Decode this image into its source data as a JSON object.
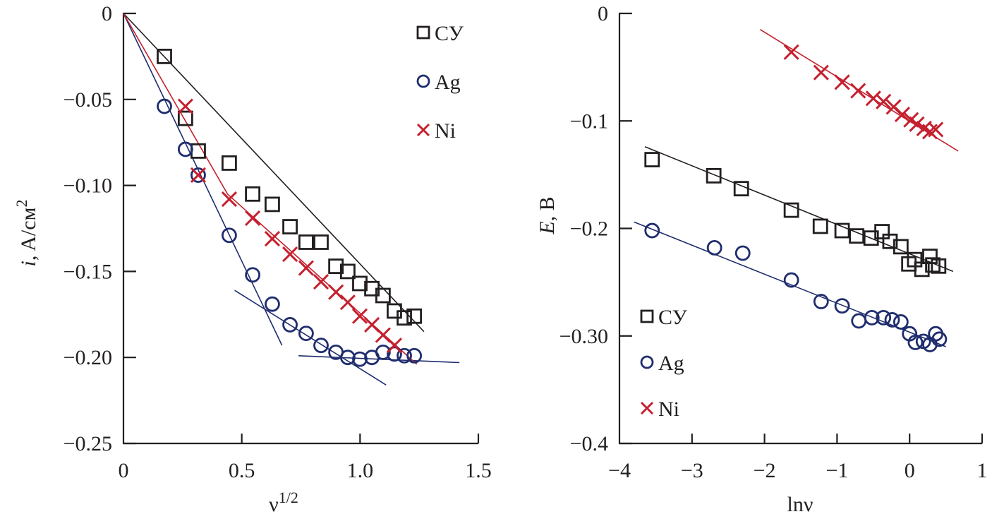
{
  "colors": {
    "СУ": "#231f20",
    "Ag": "#1f2d6e",
    "Ni": "#c5202e",
    "axis": "#231f20"
  },
  "chart_data": [
    {
      "type": "scatter",
      "title": "",
      "xlabel": "ν^1/2",
      "xlabel_base": "ν",
      "xlabel_sup": "1/2",
      "ylabel": "i, A/см²",
      "ylabel_italic": "i",
      "ylabel_rest": ", A/см",
      "ylabel_sup": "2",
      "xlim": [
        0,
        1.5
      ],
      "ylim": [
        -0.25,
        0
      ],
      "xticks": [
        0,
        0.5,
        1.0,
        1.5
      ],
      "xtick_labels": [
        "0",
        "0.5",
        "1.0",
        "1.5"
      ],
      "yticks": [
        0,
        -0.05,
        -0.1,
        -0.15,
        -0.2,
        -0.25
      ],
      "ytick_labels": [
        "0",
        "−0.05",
        "−0.10",
        "−0.15",
        "−0.20",
        "−0.25"
      ],
      "grid": false,
      "legend_position": "top-right",
      "legend": [
        {
          "name": "СУ",
          "marker": "square"
        },
        {
          "name": "Ag",
          "marker": "circle"
        },
        {
          "name": "Ni",
          "marker": "cross"
        }
      ],
      "series": [
        {
          "name": "СУ",
          "marker": "square",
          "x": [
            0.173,
            0.262,
            0.316,
            0.447,
            0.546,
            0.629,
            0.704,
            0.772,
            0.835,
            0.898,
            0.948,
            0.999,
            1.05,
            1.097,
            1.145,
            1.187,
            1.229
          ],
          "y": [
            -0.025,
            -0.061,
            -0.08,
            -0.087,
            -0.105,
            -0.111,
            -0.124,
            -0.133,
            -0.133,
            -0.147,
            -0.15,
            -0.157,
            -0.16,
            -0.164,
            -0.173,
            -0.177,
            -0.176
          ]
        },
        {
          "name": "Ag",
          "marker": "circle",
          "x": [
            0.173,
            0.262,
            0.316,
            0.447,
            0.546,
            0.629,
            0.704,
            0.772,
            0.835,
            0.898,
            0.948,
            0.999,
            1.05,
            1.097,
            1.145,
            1.187,
            1.229
          ],
          "y": [
            -0.054,
            -0.079,
            -0.094,
            -0.129,
            -0.152,
            -0.169,
            -0.181,
            -0.186,
            -0.193,
            -0.197,
            -0.2,
            -0.201,
            -0.2,
            -0.197,
            -0.198,
            -0.199,
            -0.199
          ]
        },
        {
          "name": "Ni",
          "marker": "cross",
          "x": [
            0.262,
            0.316,
            0.447,
            0.546,
            0.629,
            0.704,
            0.772,
            0.835,
            0.898,
            0.948,
            0.999,
            1.05,
            1.097,
            1.145
          ],
          "y": [
            -0.054,
            -0.094,
            -0.108,
            -0.119,
            -0.131,
            -0.14,
            -0.148,
            -0.156,
            -0.162,
            -0.168,
            -0.176,
            -0.181,
            -0.187,
            -0.193
          ]
        }
      ],
      "fit_lines": [
        {
          "series": "СУ",
          "points": [
            [
              0,
              0
            ],
            [
              1.27,
              -0.185
            ]
          ]
        },
        {
          "series": "Ag",
          "points": [
            [
              0,
              0
            ],
            [
              0.67,
              -0.193
            ]
          ]
        },
        {
          "series": "Ag",
          "points": [
            [
              0.47,
              -0.161
            ],
            [
              1.11,
              -0.216
            ]
          ]
        },
        {
          "series": "Ag",
          "points": [
            [
              0.74,
              -0.199
            ],
            [
              1.42,
              -0.203
            ]
          ]
        },
        {
          "series": "Ni",
          "points": [
            [
              0,
              0
            ],
            [
              0.44,
              -0.105
            ],
            [
              1.24,
              -0.204
            ]
          ]
        }
      ]
    },
    {
      "type": "scatter",
      "title": "",
      "xlabel": "lnν",
      "ylabel": "E, В",
      "ylabel_italic": "E",
      "ylabel_rest": ", В",
      "xlim": [
        -4,
        1
      ],
      "ylim": [
        -0.4,
        0
      ],
      "xticks": [
        -4,
        -3,
        -2,
        -1,
        0,
        1
      ],
      "xtick_labels": [
        "−4",
        "−3",
        "−2",
        "−1",
        "0",
        "1"
      ],
      "yticks": [
        0,
        -0.1,
        -0.2,
        -0.3,
        -0.4
      ],
      "ytick_labels": [
        "0",
        "−0.1",
        "−0.2",
        "−0.30",
        "−0.4"
      ],
      "grid": false,
      "legend_position": "bottom-left",
      "legend": [
        {
          "name": "СУ",
          "marker": "square"
        },
        {
          "name": "Ag",
          "marker": "circle"
        },
        {
          "name": "Ni",
          "marker": "cross"
        }
      ],
      "series": [
        {
          "name": "СУ",
          "marker": "square",
          "x": [
            -3.55,
            -2.7,
            -2.32,
            -1.63,
            -1.23,
            -0.93,
            -0.73,
            -0.53,
            -0.38,
            -0.27,
            -0.12,
            -0.01,
            0.07,
            0.17,
            0.28,
            0.32,
            0.4
          ],
          "y": [
            -0.136,
            -0.151,
            -0.163,
            -0.183,
            -0.198,
            -0.202,
            -0.207,
            -0.209,
            -0.203,
            -0.212,
            -0.217,
            -0.233,
            -0.229,
            -0.238,
            -0.226,
            -0.234,
            -0.235
          ]
        },
        {
          "name": "Ag",
          "marker": "circle",
          "x": [
            -3.55,
            -2.69,
            -2.3,
            -1.63,
            -1.22,
            -0.93,
            -0.7,
            -0.52,
            -0.36,
            -0.24,
            -0.12,
            0.0,
            0.08,
            0.19,
            0.28,
            0.36,
            0.41
          ],
          "y": [
            -0.202,
            -0.218,
            -0.223,
            -0.248,
            -0.268,
            -0.272,
            -0.286,
            -0.283,
            -0.283,
            -0.285,
            -0.287,
            -0.298,
            -0.306,
            -0.305,
            -0.308,
            -0.298,
            -0.303
          ]
        },
        {
          "name": "Ni",
          "marker": "cross",
          "x": [
            -1.63,
            -1.22,
            -0.93,
            -0.71,
            -0.5,
            -0.36,
            -0.22,
            -0.1,
            0.02,
            0.1,
            0.2,
            0.28,
            0.36
          ],
          "y": [
            -0.036,
            -0.055,
            -0.064,
            -0.072,
            -0.079,
            -0.082,
            -0.087,
            -0.094,
            -0.099,
            -0.103,
            -0.107,
            -0.11,
            -0.108
          ]
        }
      ],
      "fit_lines": [
        {
          "series": "СУ",
          "points": [
            [
              -3.65,
              -0.124
            ],
            [
              0.6,
              -0.24
            ]
          ]
        },
        {
          "series": "Ag",
          "points": [
            [
              -3.8,
              -0.194
            ],
            [
              0.5,
              -0.31
            ]
          ]
        },
        {
          "series": "Ni",
          "points": [
            [
              -2.06,
              -0.015
            ],
            [
              0.67,
              -0.128
            ]
          ]
        }
      ]
    }
  ]
}
